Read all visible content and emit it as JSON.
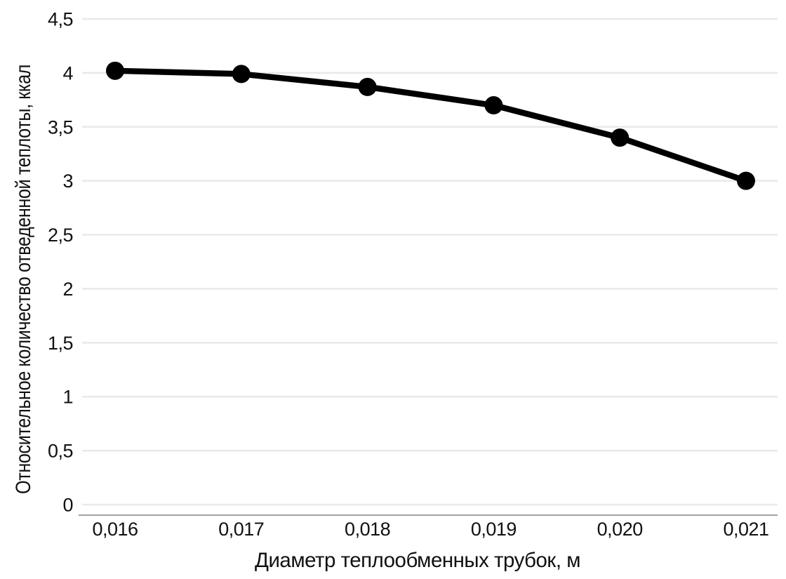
{
  "chart_data": {
    "type": "line",
    "title": "",
    "xlabel": "Диаметр теплообменных трубок, м",
    "ylabel": "Относительное количество отведенной теплоты, ккал",
    "categories": [
      "0,016",
      "0,017",
      "0,018",
      "0,019",
      "0,020",
      "0,021"
    ],
    "categories_numeric": [
      0.016,
      0.017,
      0.018,
      0.019,
      0.02,
      0.021
    ],
    "values": [
      4.02,
      3.99,
      3.87,
      3.7,
      3.4,
      3.0
    ],
    "ylim": [
      0,
      4.5
    ],
    "yticks": [
      {
        "value": 0,
        "label": "0"
      },
      {
        "value": 0.5,
        "label": "0,5"
      },
      {
        "value": 1,
        "label": "1"
      },
      {
        "value": 1.5,
        "label": "1,5"
      },
      {
        "value": 2,
        "label": "2"
      },
      {
        "value": 2.5,
        "label": "2,5"
      },
      {
        "value": 3,
        "label": "3"
      },
      {
        "value": 3.5,
        "label": "3,5"
      },
      {
        "value": 4,
        "label": "4"
      },
      {
        "value": 4.5,
        "label": "4,5"
      }
    ],
    "grid": "horizontal-only",
    "legend": "none",
    "marker": "filled-circle",
    "styles": {
      "line_color": "#000000",
      "marker_color": "#000000",
      "gridline_color": "#e9e9e9",
      "axis_line_color": "#a8a8a8",
      "text_color": "#111111",
      "background": "#ffffff"
    }
  }
}
